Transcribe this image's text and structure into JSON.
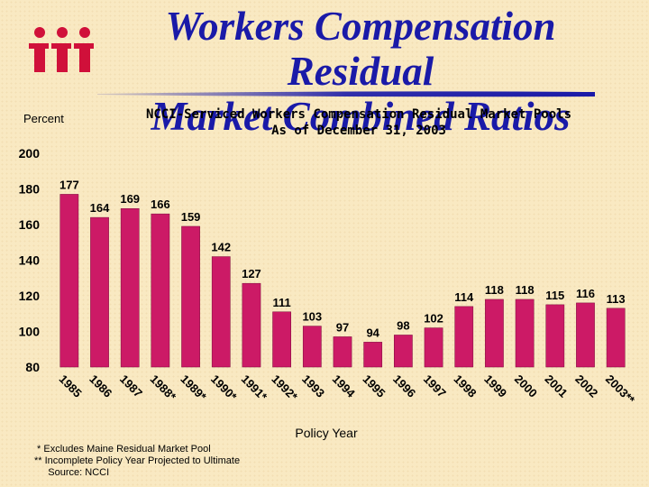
{
  "title_line1": "Workers Compensation Residual",
  "title_line2": "Market Combined Ratios",
  "colors": {
    "bar": "#cc1a66",
    "title": "#1a1aa8",
    "logo": "#d0103a",
    "background": "#f9e9c2"
  },
  "chart_data": {
    "type": "bar",
    "title": "NCCI-Serviced Workers Compensation Residual Market Pools",
    "subtitle": "As of December 31, 2003",
    "ylabel": "Percent",
    "xlabel": "Policy Year",
    "ylim": [
      80,
      200
    ],
    "yticks": [
      80,
      100,
      120,
      140,
      160,
      180,
      200
    ],
    "categories": [
      "1985",
      "1986",
      "1987",
      "1988*",
      "1989*",
      "1990*",
      "1991*",
      "1992*",
      "1993",
      "1994",
      "1995",
      "1996",
      "1997",
      "1998",
      "1999",
      "2000",
      "2001",
      "2002",
      "2003**"
    ],
    "values": [
      177,
      164,
      169,
      166,
      159,
      142,
      127,
      111,
      103,
      97,
      94,
      98,
      102,
      114,
      118,
      118,
      115,
      116,
      113
    ],
    "grid": false,
    "legend": "none"
  },
  "footnotes": [
    " * Excludes Maine Residual Market Pool",
    "** Incomplete Policy Year Projected to Ultimate",
    "     Source: NCCI"
  ]
}
